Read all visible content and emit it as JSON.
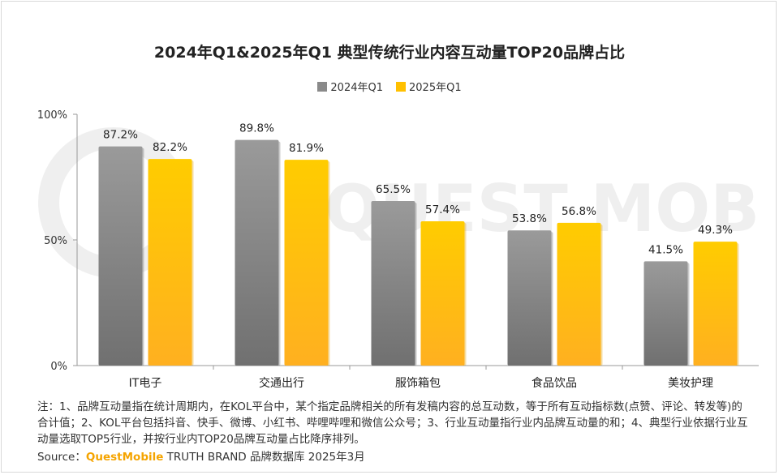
{
  "title": "2024年Q1&2025年Q1 典型传统行业内容互动量TOP20品牌占比",
  "legend": [
    {
      "name": "2024年Q1",
      "color": "#8a8a8a"
    },
    {
      "name": "2025年Q1",
      "color": "#ffc000"
    }
  ],
  "chart_data": {
    "type": "bar",
    "categories": [
      "IT电子",
      "交通出行",
      "服饰箱包",
      "食品饮品",
      "美妆护理"
    ],
    "series": [
      {
        "name": "2024年Q1",
        "values": [
          87.2,
          89.8,
          65.5,
          53.8,
          41.5
        ],
        "labels": [
          "87.2%",
          "89.8%",
          "65.5%",
          "53.8%",
          "41.5%"
        ]
      },
      {
        "name": "2025年Q1",
        "values": [
          82.2,
          81.9,
          57.4,
          56.8,
          49.3
        ],
        "labels": [
          "82.2%",
          "81.9%",
          "57.4%",
          "56.8%",
          "49.3%"
        ]
      }
    ],
    "ylim": [
      0,
      100
    ],
    "yticks": [
      {
        "value": 0,
        "label": "0%"
      },
      {
        "value": 50,
        "label": "50%"
      },
      {
        "value": 100,
        "label": "100%"
      }
    ],
    "legend_position": "top",
    "grid": false
  },
  "note": "注：1、品牌互动量指在统计周期内，在KOL平台中，某个指定品牌相关的所有发稿内容的总互动数，等于所有互动指标数(点赞、评论、转发等)的合计值；2、KOL平台包括抖音、快手、微博、小红书、哔哩哔哩和微信公众号；3、行业互动量指行业内品牌互动量的和；4、典型行业依据行业互动量选取TOP5行业，并按行业内TOP20品牌互动量占比降序排列。",
  "source": {
    "prefix": "Source：",
    "brand": "QuestMobile",
    "suffix": " TRUTH BRAND 品牌数据库 2025年3月"
  },
  "watermark": "QUEST MOBILE"
}
